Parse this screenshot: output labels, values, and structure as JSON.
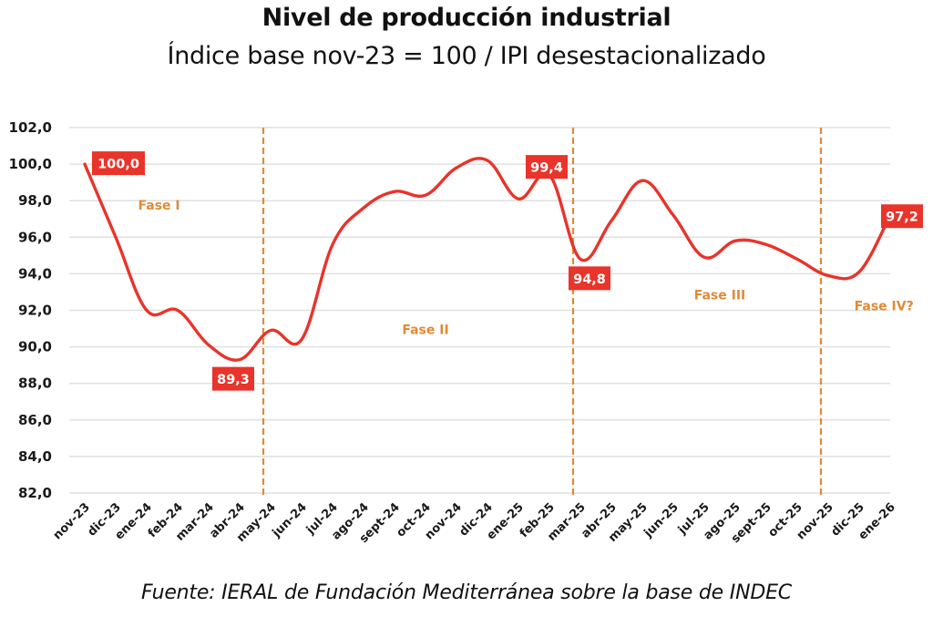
{
  "chart_data": {
    "type": "line",
    "title": "Nivel de producción industrial",
    "subtitle": "Índice base nov-23 = 100 / IPI desestacionalizado",
    "source": "Fuente: IERAL de Fundación Mediterránea sobre la base de INDEC",
    "xlabel": "",
    "ylabel": "",
    "ylim": [
      82,
      102
    ],
    "yticks": [
      "82,0",
      "84,0",
      "86,0",
      "88,0",
      "90,0",
      "92,0",
      "94,0",
      "96,0",
      "98,0",
      "100,0",
      "102,0"
    ],
    "ytick_values": [
      82,
      84,
      86,
      88,
      90,
      92,
      94,
      96,
      98,
      100,
      102
    ],
    "grid": true,
    "categories": [
      "nov-23",
      "dic-23",
      "ene-24",
      "feb-24",
      "mar-24",
      "abr-24",
      "may-24",
      "jun-24",
      "jul-24",
      "ago-24",
      "sept-24",
      "oct-24",
      "nov-24",
      "dic-24",
      "ene-25",
      "feb-25",
      "mar-25",
      "abr-25",
      "may-25",
      "jun-25",
      "jul-25",
      "ago-25",
      "sept-25",
      "oct-25",
      "nov-25",
      "dic-25",
      "ene-26"
    ],
    "series": [
      {
        "name": "IPI desestacionalizado",
        "color": "#e8342a",
        "values": [
          100.0,
          96.0,
          92.0,
          92.0,
          90.1,
          89.3,
          90.9,
          90.4,
          95.6,
          97.6,
          98.5,
          98.3,
          99.8,
          100.2,
          98.1,
          99.4,
          94.8,
          96.9,
          99.1,
          97.2,
          94.9,
          95.8,
          95.6,
          94.8,
          93.9,
          94.1,
          97.2
        ]
      }
    ],
    "data_labels": [
      {
        "index": 0,
        "text": "100,0"
      },
      {
        "index": 5,
        "text": "89,3"
      },
      {
        "index": 15,
        "text": "99,4"
      },
      {
        "index": 16,
        "text": "94,8"
      },
      {
        "index": 26,
        "text": "97,2"
      }
    ],
    "phase_dividers": [
      6,
      16,
      24
    ],
    "phases": [
      {
        "label": "Fase I",
        "x_index": 2.4,
        "y": 97.5
      },
      {
        "label": "Fase II",
        "x_index": 11.0,
        "y": 90.7
      },
      {
        "label": "Fase III",
        "x_index": 20.5,
        "y": 92.6
      },
      {
        "label": "Fase IV?",
        "x_index": 25.8,
        "y": 92.0
      }
    ],
    "colors": {
      "line": "#e8342a",
      "label_bg": "#e8342a",
      "divider": "#e08a36",
      "phase_text": "#e08a36",
      "grid": "#e0e0e0"
    }
  }
}
